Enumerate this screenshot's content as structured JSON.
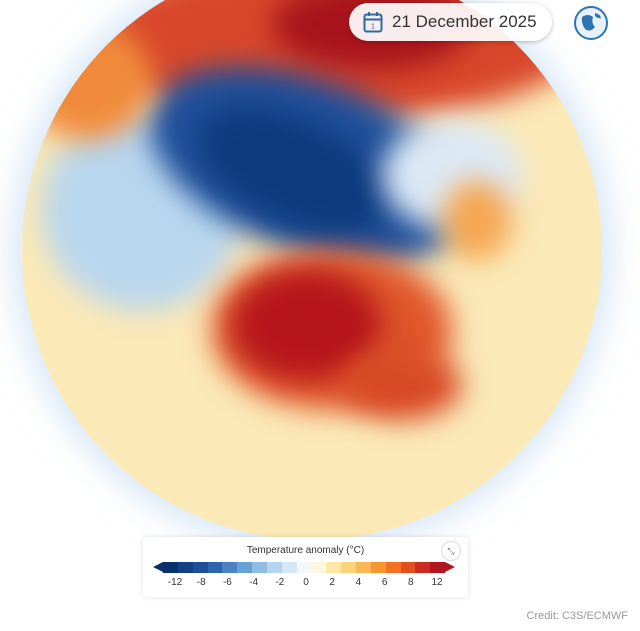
{
  "header": {
    "date": "21 December 2025",
    "calendar_icon": "calendar-icon",
    "globe_icon": "globe-icon"
  },
  "legend": {
    "title": "Temperature anomaly (°C)",
    "ticks": [
      "-12",
      "-8",
      "-6",
      "-4",
      "-2",
      "0",
      "2",
      "4",
      "6",
      "8",
      "12"
    ],
    "colors": [
      "#08306b",
      "#143f85",
      "#1f4f9a",
      "#2e64ad",
      "#4a82c2",
      "#6aa1d4",
      "#8fbde3",
      "#b5d5ee",
      "#d6e8f6",
      "#f4f8fb",
      "#fdf6e0",
      "#fde9a4",
      "#fdd47e",
      "#fbb655",
      "#f99633",
      "#f17222",
      "#e34e1f",
      "#cc2b20",
      "#b1151f"
    ],
    "collapse_icon": "collapse-icon"
  },
  "credit": "Credit: C3S/ECMWF",
  "map_colors": {
    "cold": "#0b3a7e",
    "warm": "#b5161c",
    "neutral": "#fbe9b8"
  }
}
